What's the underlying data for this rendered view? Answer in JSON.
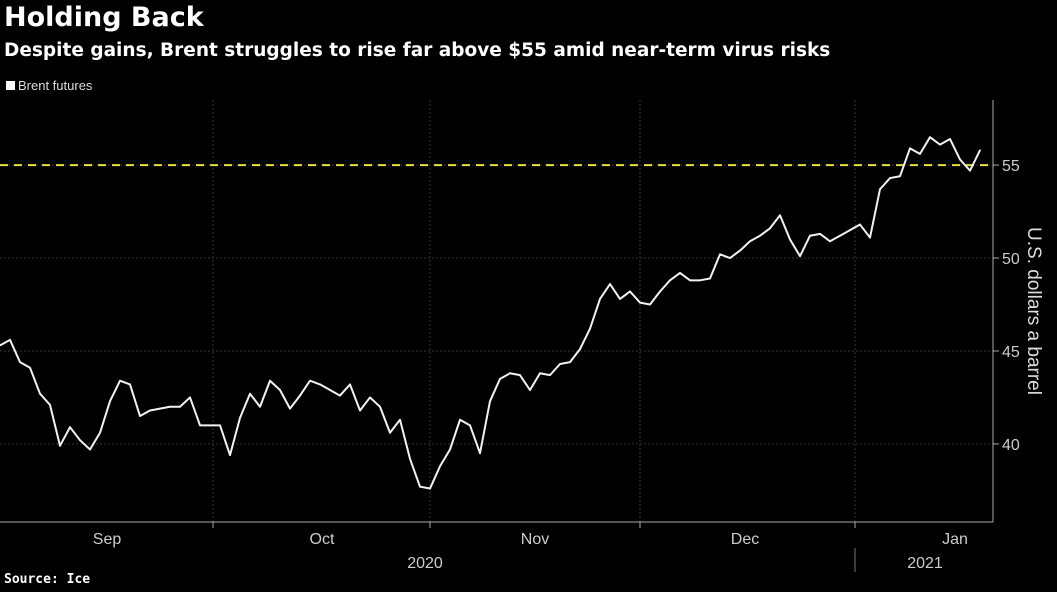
{
  "chart_data": {
    "type": "line",
    "title": "Holding Back",
    "subtitle": "Despite gains, Brent struggles to rise far above $55 amid near-term virus risks",
    "legend": [
      {
        "label": "Brent futures",
        "color": "#ffffff"
      }
    ],
    "ylabel": "U.S. dollars a barrel",
    "ylim": [
      35.8,
      58.5
    ],
    "yticks": [
      40,
      45,
      50,
      55
    ],
    "reference_line": {
      "value": 55,
      "color": "#e8e03a",
      "style": "dashed"
    },
    "x_month_labels": [
      {
        "label": "Sep",
        "day": 10.7
      },
      {
        "label": "Oct",
        "day": 32.2
      },
      {
        "label": "Nov",
        "day": 53.5
      },
      {
        "label": "Dec",
        "day": 74.5
      },
      {
        "label": "Jan",
        "day": 95.5
      }
    ],
    "x_month_boundaries": [
      21.3,
      43,
      64,
      85.5
    ],
    "x_year_labels": [
      {
        "label": "2020",
        "day": 42.5
      },
      {
        "label": "2021",
        "day": 92.5
      }
    ],
    "x_year_boundary": 85.5,
    "xlim": [
      0,
      99.3
    ],
    "grid": true,
    "series": [
      {
        "name": "Brent futures",
        "values": [
          45.3,
          45.6,
          44.4,
          44.1,
          42.7,
          42.1,
          39.9,
          40.9,
          40.2,
          39.7,
          40.6,
          42.3,
          43.4,
          43.2,
          41.5,
          41.8,
          41.9,
          42.0,
          42.0,
          42.5,
          41.0,
          41.0,
          41.0,
          39.4,
          41.4,
          42.7,
          42.0,
          43.4,
          42.9,
          41.9,
          42.6,
          43.4,
          43.2,
          42.9,
          42.6,
          43.2,
          41.8,
          42.5,
          42.0,
          40.6,
          41.3,
          39.2,
          37.7,
          37.6,
          38.8,
          39.7,
          41.3,
          41.0,
          39.5,
          42.3,
          43.5,
          43.8,
          43.7,
          42.9,
          43.8,
          43.7,
          44.3,
          44.4,
          45.1,
          46.2,
          47.8,
          48.6,
          47.8,
          48.2,
          47.6,
          47.5,
          48.2,
          48.8,
          49.2,
          48.8,
          48.8,
          48.9,
          50.2,
          50.0,
          50.4,
          50.9,
          51.2,
          51.6,
          52.3,
          51.0,
          50.1,
          51.2,
          51.3,
          50.9,
          51.2,
          51.5,
          51.8,
          51.1,
          53.7,
          54.3,
          54.4,
          55.9,
          55.6,
          56.5,
          56.1,
          56.4,
          55.3,
          54.7,
          55.8
        ]
      }
    ]
  },
  "source": "Source: Ice"
}
